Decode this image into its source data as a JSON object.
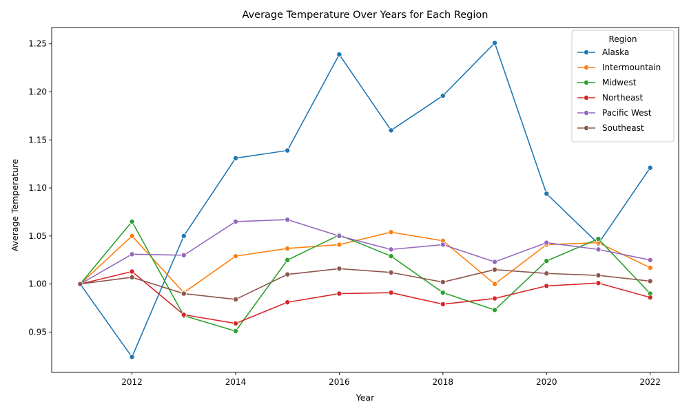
{
  "chart_data": {
    "type": "line",
    "title": "Average Temperature Over Years for Each Region",
    "xlabel": "Year",
    "ylabel": "Average Temperature",
    "x": [
      2011,
      2012,
      2013,
      2014,
      2015,
      2016,
      2017,
      2018,
      2019,
      2020,
      2021,
      2022
    ],
    "xlim": [
      2010.45,
      2022.55
    ],
    "ylim": [
      0.908,
      1.267
    ],
    "xticks": [
      2012,
      2014,
      2016,
      2018,
      2020,
      2022
    ],
    "yticks": [
      0.95,
      1.0,
      1.05,
      1.1,
      1.15,
      1.2,
      1.25
    ],
    "ytick_labels": [
      "0.95",
      "1.00",
      "1.05",
      "1.10",
      "1.15",
      "1.20",
      "1.25"
    ],
    "grid": false,
    "legend": {
      "title": "Region",
      "placement": "top-right"
    },
    "series": [
      {
        "name": "Alaska",
        "color": "#1f77b4",
        "values": [
          1.0,
          0.924,
          1.05,
          1.131,
          1.139,
          1.239,
          1.16,
          1.196,
          1.251,
          1.094,
          1.042,
          1.121
        ]
      },
      {
        "name": "Intermountain",
        "color": "#ff7f0e",
        "values": [
          1.0,
          1.05,
          0.991,
          1.029,
          1.037,
          1.041,
          1.054,
          1.045,
          1.0,
          1.041,
          1.043,
          1.017
        ]
      },
      {
        "name": "Midwest",
        "color": "#2ca02c",
        "values": [
          1.0,
          1.065,
          0.967,
          0.951,
          1.025,
          1.051,
          1.029,
          0.991,
          0.973,
          1.024,
          1.047,
          0.99
        ]
      },
      {
        "name": "Northeast",
        "color": "#d62728",
        "values": [
          1.0,
          1.013,
          0.968,
          0.959,
          0.981,
          0.99,
          0.991,
          0.979,
          0.985,
          0.998,
          1.001,
          0.986
        ]
      },
      {
        "name": "Pacific West",
        "color": "#9467bd",
        "values": [
          1.0,
          1.031,
          1.03,
          1.065,
          1.067,
          1.05,
          1.036,
          1.041,
          1.023,
          1.043,
          1.036,
          1.025
        ]
      },
      {
        "name": "Southeast",
        "color": "#8c564b",
        "values": [
          1.0,
          1.007,
          0.99,
          0.984,
          1.01,
          1.016,
          1.012,
          1.002,
          1.015,
          1.011,
          1.009,
          1.003
        ]
      }
    ]
  }
}
